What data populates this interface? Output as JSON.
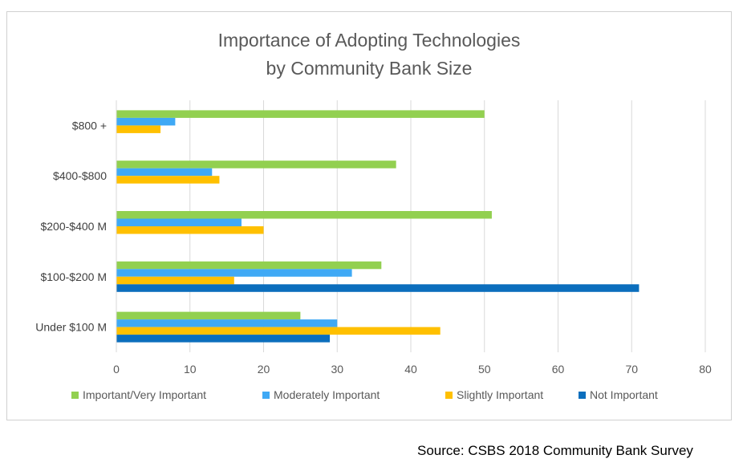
{
  "chart_data": {
    "type": "bar",
    "orientation": "horizontal",
    "title": "Importance of Adopting Technologies by Community Bank Size",
    "title_lines": [
      "Importance of Adopting Technologies",
      "by Community Bank Size"
    ],
    "categories": [
      "$800 +",
      "$400-$800",
      "$200-$400 M",
      "$100-$200 M",
      "Under $100 M"
    ],
    "series": [
      {
        "name": "Important/Very Important",
        "color": "#92d050",
        "values": [
          50,
          38,
          51,
          36,
          25
        ]
      },
      {
        "name": "Moderately Important",
        "color": "#3fa9f5",
        "values": [
          8,
          13,
          17,
          32,
          30
        ]
      },
      {
        "name": "Slightly Important",
        "color": "#ffc000",
        "values": [
          6,
          14,
          20,
          16,
          44
        ]
      },
      {
        "name": "Not Important",
        "color": "#0b6ebd",
        "values": [
          0,
          0,
          0,
          71,
          29
        ]
      }
    ],
    "xlim": [
      0,
      80
    ],
    "xticks": [
      0,
      10,
      20,
      30,
      40,
      50,
      60,
      70,
      80
    ],
    "grid": true,
    "legend_position": "bottom"
  },
  "source": "Source: CSBS 2018 Community Bank Survey"
}
